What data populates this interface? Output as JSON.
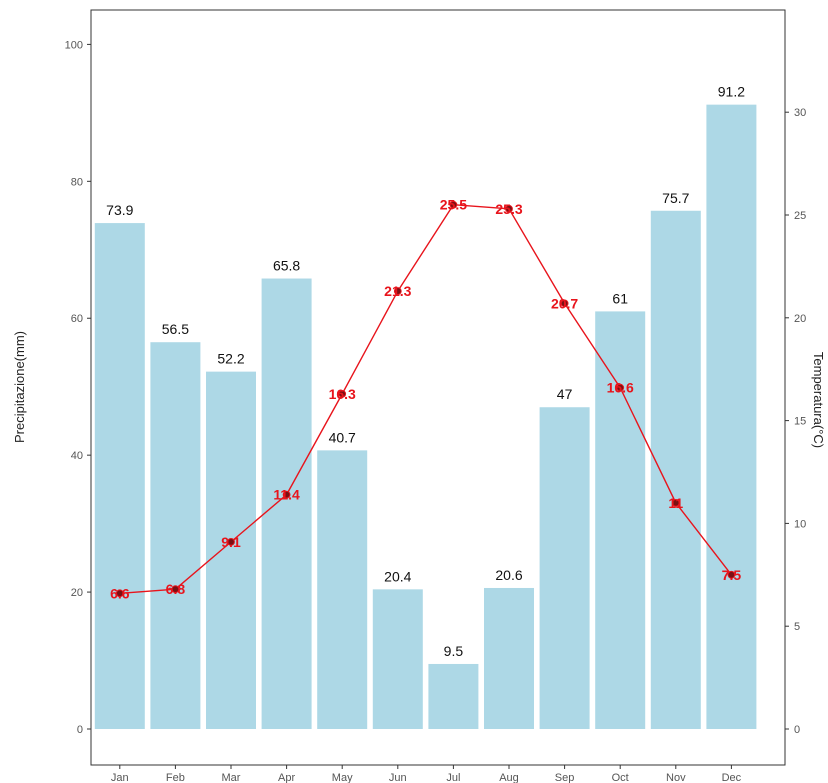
{
  "chart_data": {
    "type": "bar",
    "categories": [
      "Jan",
      "Feb",
      "Mar",
      "Apr",
      "May",
      "Jun",
      "Jul",
      "Aug",
      "Sep",
      "Oct",
      "Nov",
      "Dec"
    ],
    "series": [
      {
        "type": "bar",
        "axis": "left",
        "values": [
          73.9,
          56.5,
          52.2,
          65.8,
          40.7,
          20.4,
          9.5,
          20.6,
          47,
          61,
          75.7,
          91.2
        ],
        "labels": [
          "73.9",
          "56.5",
          "52.2",
          "65.8",
          "40.7",
          "20.4",
          "9.5",
          "20.6",
          "47",
          "61",
          "75.7",
          "91.2"
        ],
        "color": "#add8e6"
      },
      {
        "type": "line",
        "axis": "right",
        "values": [
          6.6,
          6.8,
          9.1,
          11.4,
          16.3,
          21.3,
          25.5,
          25.3,
          20.7,
          16.6,
          11,
          7.5
        ],
        "labels": [
          "6.6",
          "6.8",
          "9.1",
          "11.4",
          "16.3",
          "21.3",
          "25.5",
          "25.3",
          "20.7",
          "16.6",
          "11",
          "7.5"
        ],
        "color": "#e8141c",
        "marker_color": "#7a1014"
      }
    ],
    "ylabel": "Precipitazione(mm)",
    "y2label": "Temperatura(°C)",
    "ylim": [
      0,
      105
    ],
    "y2lim": [
      0,
      35
    ],
    "yticks": [
      "0",
      "20",
      "40",
      "60",
      "80",
      "100"
    ],
    "y2ticks": [
      "0",
      "5",
      "10",
      "15",
      "20",
      "25",
      "30"
    ],
    "grid": false,
    "legend": "none"
  }
}
